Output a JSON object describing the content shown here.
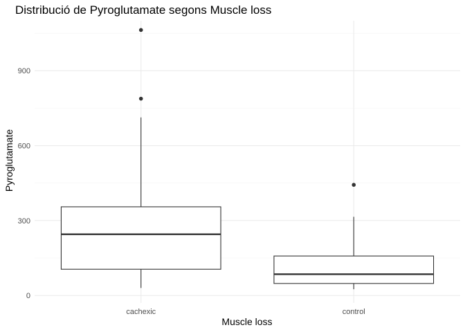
{
  "chart_data": {
    "type": "boxplot",
    "title": "Distribució de Pyroglutamate segons Muscle loss",
    "xlabel": "Muscle loss",
    "ylabel": "Pyroglutamate",
    "ylim": [
      -30,
      1100
    ],
    "yticks": [
      0,
      300,
      600,
      900
    ],
    "ytick_labels": [
      "0",
      "300",
      "600",
      "900"
    ],
    "grid": true,
    "legend": "none",
    "categories": [
      "cachexic",
      "control"
    ],
    "boxes": [
      {
        "category": "cachexic",
        "whisker_low": 30,
        "q1": 105,
        "median": 245,
        "q3": 355,
        "whisker_high": 713,
        "outliers": [
          788,
          1063
        ]
      },
      {
        "category": "control",
        "whisker_low": 25,
        "q1": 48,
        "median": 85,
        "q3": 158,
        "whisker_high": 315,
        "outliers": [
          443
        ]
      }
    ]
  }
}
